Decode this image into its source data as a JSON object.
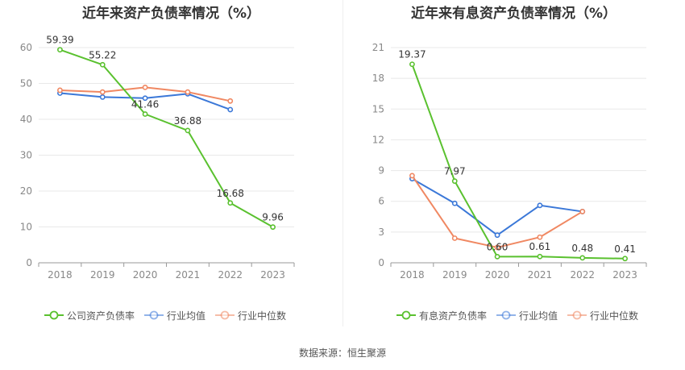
{
  "chart_data": [
    {
      "type": "line",
      "title": "近年来资产负债率情况（%）",
      "categories": [
        "2018",
        "2019",
        "2020",
        "2021",
        "2022",
        "2023"
      ],
      "ylim": [
        0,
        60
      ],
      "yticks": [
        0,
        10,
        20,
        30,
        40,
        50,
        60
      ],
      "grid": true,
      "legend_position": "bottom",
      "series": [
        {
          "name": "公司资产负债率",
          "color": "#5ac12f",
          "values": [
            59.39,
            55.22,
            41.46,
            36.88,
            16.68,
            9.96
          ],
          "labels": [
            "59.39",
            "55.22",
            "41.46",
            "36.88",
            "16.68",
            "9.96"
          ]
        },
        {
          "name": "行业均值",
          "color": "#3b78d8",
          "values": [
            47.3,
            46.2,
            45.9,
            47.1,
            42.7,
            null
          ]
        },
        {
          "name": "行业中位数",
          "color": "#f08862",
          "values": [
            48.1,
            47.6,
            48.9,
            47.6,
            45.1,
            null
          ]
        }
      ]
    },
    {
      "type": "line",
      "title": "近年来有息资产负债率情况（%）",
      "categories": [
        "2018",
        "2019",
        "2020",
        "2021",
        "2022",
        "2023"
      ],
      "ylim": [
        0,
        21
      ],
      "yticks": [
        0,
        3,
        6,
        9,
        12,
        15,
        18,
        21
      ],
      "grid": true,
      "legend_position": "bottom",
      "series": [
        {
          "name": "有息资产负债率",
          "color": "#5ac12f",
          "values": [
            19.37,
            7.97,
            0.6,
            0.61,
            0.48,
            0.41
          ],
          "labels": [
            "19.37",
            "7.97",
            "0.60",
            "0.61",
            "0.48",
            "0.41"
          ]
        },
        {
          "name": "行业均值",
          "color": "#3b78d8",
          "values": [
            8.2,
            5.8,
            2.7,
            5.6,
            5.0,
            null
          ]
        },
        {
          "name": "行业中位数",
          "color": "#f08862",
          "values": [
            8.5,
            2.4,
            1.5,
            2.5,
            5.0,
            null
          ]
        }
      ]
    }
  ],
  "source": {
    "label": "数据来源：",
    "value": "恒生聚源"
  }
}
